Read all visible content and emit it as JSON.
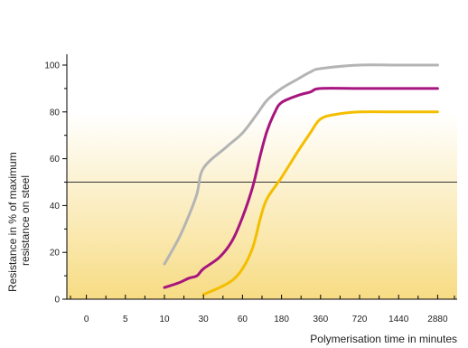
{
  "chart_data": {
    "type": "line",
    "xlabel": "Polymerisation time in minutes",
    "ylabel_lines": [
      "Resistance in % of maximum",
      "resistance on steel"
    ],
    "x_ticks": [
      "0",
      "5",
      "10",
      "30",
      "60",
      "180",
      "360",
      "720",
      "1440",
      "2880"
    ],
    "y_ticks": [
      0,
      20,
      40,
      60,
      80,
      100
    ],
    "ylim": [
      0,
      100
    ],
    "reference_line": 50,
    "background_gradient": [
      "#f7dc84",
      "#ffffff"
    ],
    "series": [
      {
        "color": "#b4b4b4",
        "points": [
          [
            "10",
            15
          ],
          [
            "15",
            26
          ],
          [
            "20",
            36
          ],
          [
            "25",
            45
          ],
          [
            "30",
            56
          ],
          [
            "45",
            65
          ],
          [
            "60",
            71
          ],
          [
            "90",
            79
          ],
          [
            "120",
            85
          ],
          [
            "180",
            90
          ],
          [
            "240",
            94
          ],
          [
            "300",
            97
          ],
          [
            "360",
            98.5
          ],
          [
            "720",
            100
          ],
          [
            "1440",
            100
          ],
          [
            "2880",
            100
          ]
        ]
      },
      {
        "color": "#a7157f",
        "points": [
          [
            "10",
            5
          ],
          [
            "15",
            7
          ],
          [
            "20",
            9
          ],
          [
            "25",
            10
          ],
          [
            "30",
            13
          ],
          [
            "40",
            18
          ],
          [
            "50",
            25
          ],
          [
            "60",
            35
          ],
          [
            "80",
            48
          ],
          [
            "100",
            62
          ],
          [
            "120",
            72
          ],
          [
            "150",
            80
          ],
          [
            "180",
            84
          ],
          [
            "240",
            87
          ],
          [
            "300",
            88.5
          ],
          [
            "360",
            90
          ],
          [
            "720",
            90
          ],
          [
            "1440",
            90
          ],
          [
            "2880",
            90
          ]
        ]
      },
      {
        "color": "#f4be00",
        "points": [
          [
            "30",
            2
          ],
          [
            "40",
            5
          ],
          [
            "50",
            8
          ],
          [
            "60",
            13
          ],
          [
            "80",
            22
          ],
          [
            "100",
            35
          ],
          [
            "120",
            43
          ],
          [
            "180",
            52
          ],
          [
            "240",
            63
          ],
          [
            "300",
            71
          ],
          [
            "360",
            77
          ],
          [
            "480",
            79
          ],
          [
            "720",
            80
          ],
          [
            "1440",
            80
          ],
          [
            "2880",
            80
          ]
        ]
      }
    ]
  }
}
